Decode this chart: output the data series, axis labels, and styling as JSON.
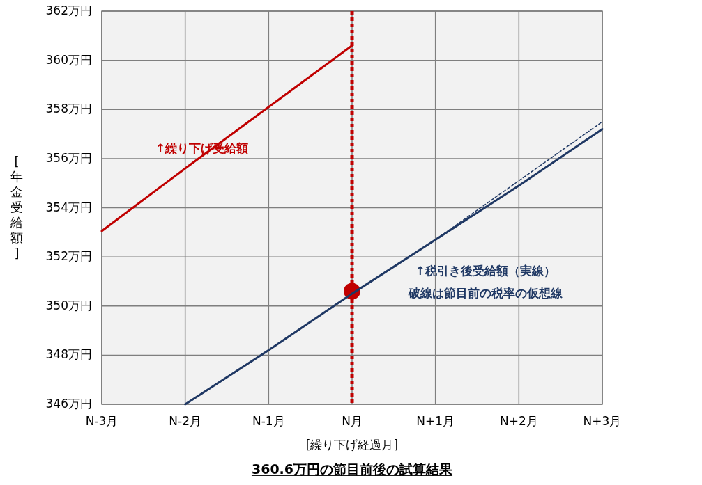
{
  "chart_data": {
    "type": "line",
    "title": "360.6万円の節目前後の試算結果",
    "xlabel": "[繰り下げ経過月]",
    "ylabel": "[年金受給額]",
    "categories": [
      "N-3月",
      "N-2月",
      "N-1月",
      "N月",
      "N+1月",
      "N+2月",
      "N+3月"
    ],
    "ylim": [
      346,
      362
    ],
    "yticks": [
      {
        "value": 346,
        "label": "346万円"
      },
      {
        "value": 348,
        "label": "348万円"
      },
      {
        "value": 350,
        "label": "350万円"
      },
      {
        "value": 352,
        "label": "352万円"
      },
      {
        "value": 354,
        "label": "354万円"
      },
      {
        "value": 356,
        "label": "356万円"
      },
      {
        "value": 358,
        "label": "358万円"
      },
      {
        "value": 360,
        "label": "360万円"
      },
      {
        "value": 362,
        "label": "362万円"
      }
    ],
    "grid": true,
    "marker": "none",
    "series": [
      {
        "color": "#c00000",
        "values": [
          353.05,
          355.6,
          358.1,
          360.6,
          null,
          null,
          null
        ]
      },
      {
        "color": "#1f3864",
        "values": [
          null,
          346,
          348.2,
          350.5,
          352.7,
          354.9,
          357.2
        ]
      },
      {
        "color": "#1f3864",
        "line_style": "dashed",
        "values": [
          null,
          null,
          null,
          null,
          352.7,
          355.1,
          357.5
        ]
      },
      {
        "type": "scatter",
        "marker": "circle",
        "color": "#c00000",
        "values": [
          null,
          null,
          null,
          350.6,
          null,
          null,
          null
        ]
      }
    ],
    "ref_lines": [
      {
        "axis": "x",
        "value": "N月",
        "color": "#c00000",
        "line_style": "dotted"
      }
    ],
    "annotations": [
      "↑繰り下げ受給額",
      "↑税引き後受給額（実線）",
      "破線は節目前の税率の仮想線"
    ]
  }
}
